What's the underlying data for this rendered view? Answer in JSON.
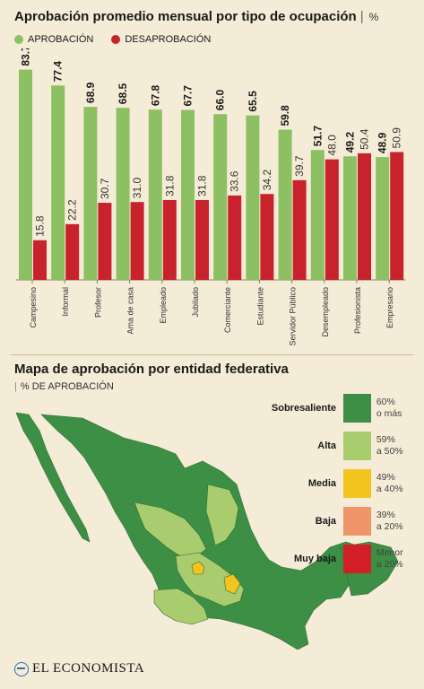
{
  "chart": {
    "title": "Aprobación promedio mensual por tipo de ocupación",
    "unit": "%",
    "legend": [
      {
        "label": "APROBACIÓN",
        "color": "#8dc063"
      },
      {
        "label": "DESAPROBACIÓN",
        "color": "#c8232d"
      }
    ]
  },
  "chart_data": {
    "type": "bar",
    "categories": [
      "Campesino",
      "Informal",
      "Profesor",
      "Ama de casa",
      "Empleado",
      "Jubilado",
      "Comerciante",
      "Estudiante",
      "Servidor Público",
      "Desempleado",
      "Profesionista",
      "Empresario"
    ],
    "series": [
      {
        "name": "APROBACIÓN",
        "values": [
          83.7,
          77.4,
          68.9,
          68.5,
          67.8,
          67.7,
          66.0,
          65.5,
          59.8,
          51.7,
          49.2,
          48.9
        ],
        "color": "#8dc063"
      },
      {
        "name": "DESAPROBACIÓN",
        "values": [
          15.8,
          22.2,
          30.7,
          31.0,
          31.8,
          31.8,
          33.6,
          34.2,
          39.7,
          48.0,
          50.4,
          50.9
        ],
        "color": "#c8232d"
      }
    ],
    "ylim": [
      0,
      90
    ],
    "grid": false,
    "legend_position": "top-left"
  },
  "map": {
    "title": "Mapa de aprobación por entidad federativa",
    "subtitle": "% DE APROBACIÓN",
    "legend": [
      {
        "category": "Sobresaliente",
        "range": [
          "60%",
          "o más"
        ],
        "color": "#3d8f45"
      },
      {
        "category": "Alta",
        "range": [
          "59%",
          "a 50%"
        ],
        "color": "#a9cc6e"
      },
      {
        "category": "Media",
        "range": [
          "49%",
          "a 40%"
        ],
        "color": "#f2c41d"
      },
      {
        "category": "Baja",
        "range": [
          "39%",
          "a 20%"
        ],
        "color": "#f0956b"
      },
      {
        "category": "Muy baja",
        "range": [
          "Menor",
          "a 20%"
        ],
        "color": "#d21f26"
      }
    ]
  },
  "brand": {
    "name": "EL ECONOMISTA"
  }
}
